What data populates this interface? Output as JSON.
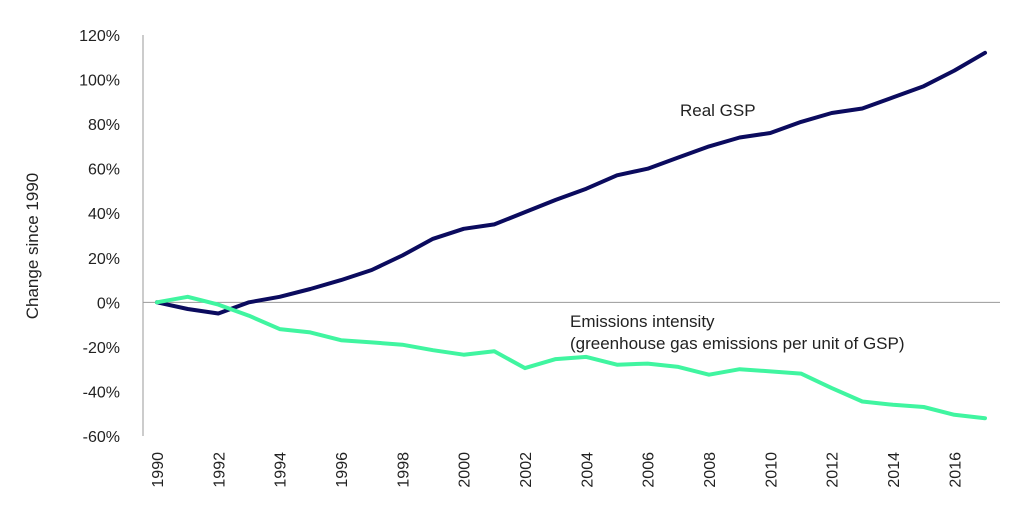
{
  "chart_data": {
    "type": "line",
    "ylabel": "Change since 1990",
    "xlabel": "",
    "ylim": [
      -0.6,
      1.2
    ],
    "yticks": [
      "120%",
      "100%",
      "80%",
      "60%",
      "40%",
      "20%",
      "0%",
      "-20%",
      "-40%",
      "-60%"
    ],
    "ytick_values": [
      1.2,
      1.0,
      0.8,
      0.6,
      0.4,
      0.2,
      0.0,
      -0.2,
      -0.4,
      -0.6
    ],
    "xticks": [
      "1990",
      "1992",
      "1994",
      "1996",
      "1998",
      "2000",
      "2002",
      "2004",
      "2006",
      "2008",
      "2010",
      "2012",
      "2014",
      "2016"
    ],
    "x": [
      1990,
      1991,
      1992,
      1993,
      1994,
      1995,
      1996,
      1997,
      1998,
      1999,
      2000,
      2001,
      2002,
      2003,
      2004,
      2005,
      2006,
      2007,
      2008,
      2009,
      2010,
      2011,
      2012,
      2013,
      2014,
      2015,
      2016,
      2017
    ],
    "grid": false,
    "series": [
      {
        "name": "Real GSP",
        "color": "#0b0b5e",
        "values": [
          0.0,
          -0.03,
          -0.05,
          0.0,
          0.025,
          0.06,
          0.1,
          0.145,
          0.21,
          0.285,
          0.33,
          0.35,
          0.405,
          0.46,
          0.51,
          0.57,
          0.6,
          0.65,
          0.7,
          0.74,
          0.76,
          0.81,
          0.85,
          0.87,
          0.92,
          0.97,
          1.04,
          1.12
        ]
      },
      {
        "name": "Emissions intensity",
        "name_line2": "(greenhouse gas emissions per unit of GSP)",
        "color": "#40f5a0",
        "values": [
          0.0,
          0.025,
          -0.01,
          -0.06,
          -0.12,
          -0.135,
          -0.17,
          -0.18,
          -0.19,
          -0.215,
          -0.235,
          -0.22,
          -0.295,
          -0.255,
          -0.245,
          -0.28,
          -0.275,
          -0.29,
          -0.325,
          -0.3,
          -0.31,
          -0.32,
          -0.385,
          -0.445,
          -0.46,
          -0.47,
          -0.505,
          -0.52
        ]
      }
    ]
  }
}
